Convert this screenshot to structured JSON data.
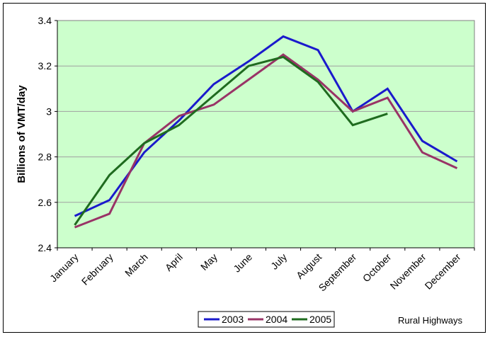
{
  "chart_data": {
    "type": "line",
    "title": "",
    "xlabel": "",
    "ylabel": "Billions of VMT/day",
    "ylim": [
      2.4,
      3.4
    ],
    "yticks": [
      2.4,
      2.6,
      2.8,
      3,
      3.2,
      3.4
    ],
    "ytick_labels": [
      "2.4",
      "2.6",
      "2.8",
      "3",
      "3.2",
      "3.4"
    ],
    "grid": true,
    "legend_position": "bottom",
    "categories": [
      "January",
      "February",
      "March",
      "April",
      "May",
      "June",
      "July",
      "August",
      "September",
      "October",
      "November",
      "December"
    ],
    "series": [
      {
        "name": "2003",
        "color": "#1a1acc",
        "values": [
          2.54,
          2.61,
          2.82,
          2.96,
          3.12,
          3.22,
          3.33,
          3.27,
          3.0,
          3.1,
          2.87,
          2.78
        ]
      },
      {
        "name": "2004",
        "color": "#993366",
        "values": [
          2.49,
          2.55,
          2.86,
          2.98,
          3.03,
          3.14,
          3.25,
          3.14,
          3.0,
          3.06,
          2.82,
          2.75
        ]
      },
      {
        "name": "2005",
        "color": "#1f6b1f",
        "values": [
          2.5,
          2.72,
          2.86,
          2.94,
          3.07,
          3.2,
          3.24,
          3.13,
          2.94,
          2.99,
          null,
          null
        ]
      }
    ],
    "annotation": "Rural Highways",
    "plot_background": "#ccffcc"
  }
}
